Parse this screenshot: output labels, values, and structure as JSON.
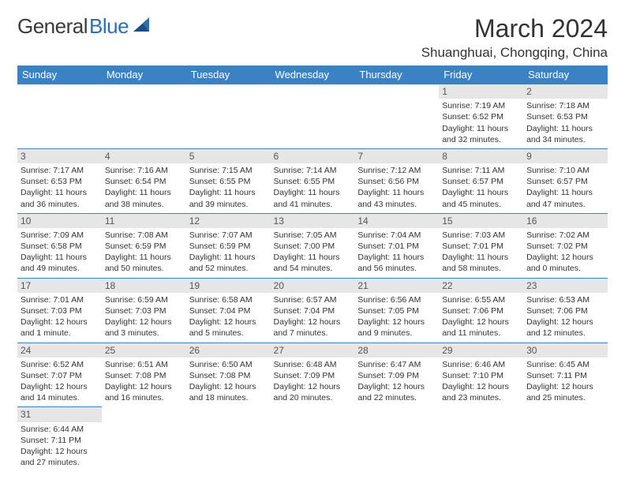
{
  "brand": {
    "part1": "General",
    "part2": "Blue"
  },
  "title": "March 2024",
  "location": "Shuanghuai, Chongqing, China",
  "colors": {
    "header_bg": "#3a82c4",
    "header_text": "#ffffff",
    "daynum_bg": "#e6e6e6",
    "border": "#3a82c4",
    "brand_blue": "#2f6db3",
    "text": "#333333"
  },
  "weekdays": [
    "Sunday",
    "Monday",
    "Tuesday",
    "Wednesday",
    "Thursday",
    "Friday",
    "Saturday"
  ],
  "weeks": [
    [
      null,
      null,
      null,
      null,
      null,
      {
        "d": "1",
        "sr": "Sunrise: 7:19 AM",
        "ss": "Sunset: 6:52 PM",
        "dl1": "Daylight: 11 hours",
        "dl2": "and 32 minutes."
      },
      {
        "d": "2",
        "sr": "Sunrise: 7:18 AM",
        "ss": "Sunset: 6:53 PM",
        "dl1": "Daylight: 11 hours",
        "dl2": "and 34 minutes."
      }
    ],
    [
      {
        "d": "3",
        "sr": "Sunrise: 7:17 AM",
        "ss": "Sunset: 6:53 PM",
        "dl1": "Daylight: 11 hours",
        "dl2": "and 36 minutes."
      },
      {
        "d": "4",
        "sr": "Sunrise: 7:16 AM",
        "ss": "Sunset: 6:54 PM",
        "dl1": "Daylight: 11 hours",
        "dl2": "and 38 minutes."
      },
      {
        "d": "5",
        "sr": "Sunrise: 7:15 AM",
        "ss": "Sunset: 6:55 PM",
        "dl1": "Daylight: 11 hours",
        "dl2": "and 39 minutes."
      },
      {
        "d": "6",
        "sr": "Sunrise: 7:14 AM",
        "ss": "Sunset: 6:55 PM",
        "dl1": "Daylight: 11 hours",
        "dl2": "and 41 minutes."
      },
      {
        "d": "7",
        "sr": "Sunrise: 7:12 AM",
        "ss": "Sunset: 6:56 PM",
        "dl1": "Daylight: 11 hours",
        "dl2": "and 43 minutes."
      },
      {
        "d": "8",
        "sr": "Sunrise: 7:11 AM",
        "ss": "Sunset: 6:57 PM",
        "dl1": "Daylight: 11 hours",
        "dl2": "and 45 minutes."
      },
      {
        "d": "9",
        "sr": "Sunrise: 7:10 AM",
        "ss": "Sunset: 6:57 PM",
        "dl1": "Daylight: 11 hours",
        "dl2": "and 47 minutes."
      }
    ],
    [
      {
        "d": "10",
        "sr": "Sunrise: 7:09 AM",
        "ss": "Sunset: 6:58 PM",
        "dl1": "Daylight: 11 hours",
        "dl2": "and 49 minutes."
      },
      {
        "d": "11",
        "sr": "Sunrise: 7:08 AM",
        "ss": "Sunset: 6:59 PM",
        "dl1": "Daylight: 11 hours",
        "dl2": "and 50 minutes."
      },
      {
        "d": "12",
        "sr": "Sunrise: 7:07 AM",
        "ss": "Sunset: 6:59 PM",
        "dl1": "Daylight: 11 hours",
        "dl2": "and 52 minutes."
      },
      {
        "d": "13",
        "sr": "Sunrise: 7:05 AM",
        "ss": "Sunset: 7:00 PM",
        "dl1": "Daylight: 11 hours",
        "dl2": "and 54 minutes."
      },
      {
        "d": "14",
        "sr": "Sunrise: 7:04 AM",
        "ss": "Sunset: 7:01 PM",
        "dl1": "Daylight: 11 hours",
        "dl2": "and 56 minutes."
      },
      {
        "d": "15",
        "sr": "Sunrise: 7:03 AM",
        "ss": "Sunset: 7:01 PM",
        "dl1": "Daylight: 11 hours",
        "dl2": "and 58 minutes."
      },
      {
        "d": "16",
        "sr": "Sunrise: 7:02 AM",
        "ss": "Sunset: 7:02 PM",
        "dl1": "Daylight: 12 hours",
        "dl2": "and 0 minutes."
      }
    ],
    [
      {
        "d": "17",
        "sr": "Sunrise: 7:01 AM",
        "ss": "Sunset: 7:03 PM",
        "dl1": "Daylight: 12 hours",
        "dl2": "and 1 minute."
      },
      {
        "d": "18",
        "sr": "Sunrise: 6:59 AM",
        "ss": "Sunset: 7:03 PM",
        "dl1": "Daylight: 12 hours",
        "dl2": "and 3 minutes."
      },
      {
        "d": "19",
        "sr": "Sunrise: 6:58 AM",
        "ss": "Sunset: 7:04 PM",
        "dl1": "Daylight: 12 hours",
        "dl2": "and 5 minutes."
      },
      {
        "d": "20",
        "sr": "Sunrise: 6:57 AM",
        "ss": "Sunset: 7:04 PM",
        "dl1": "Daylight: 12 hours",
        "dl2": "and 7 minutes."
      },
      {
        "d": "21",
        "sr": "Sunrise: 6:56 AM",
        "ss": "Sunset: 7:05 PM",
        "dl1": "Daylight: 12 hours",
        "dl2": "and 9 minutes."
      },
      {
        "d": "22",
        "sr": "Sunrise: 6:55 AM",
        "ss": "Sunset: 7:06 PM",
        "dl1": "Daylight: 12 hours",
        "dl2": "and 11 minutes."
      },
      {
        "d": "23",
        "sr": "Sunrise: 6:53 AM",
        "ss": "Sunset: 7:06 PM",
        "dl1": "Daylight: 12 hours",
        "dl2": "and 12 minutes."
      }
    ],
    [
      {
        "d": "24",
        "sr": "Sunrise: 6:52 AM",
        "ss": "Sunset: 7:07 PM",
        "dl1": "Daylight: 12 hours",
        "dl2": "and 14 minutes."
      },
      {
        "d": "25",
        "sr": "Sunrise: 6:51 AM",
        "ss": "Sunset: 7:08 PM",
        "dl1": "Daylight: 12 hours",
        "dl2": "and 16 minutes."
      },
      {
        "d": "26",
        "sr": "Sunrise: 6:50 AM",
        "ss": "Sunset: 7:08 PM",
        "dl1": "Daylight: 12 hours",
        "dl2": "and 18 minutes."
      },
      {
        "d": "27",
        "sr": "Sunrise: 6:48 AM",
        "ss": "Sunset: 7:09 PM",
        "dl1": "Daylight: 12 hours",
        "dl2": "and 20 minutes."
      },
      {
        "d": "28",
        "sr": "Sunrise: 6:47 AM",
        "ss": "Sunset: 7:09 PM",
        "dl1": "Daylight: 12 hours",
        "dl2": "and 22 minutes."
      },
      {
        "d": "29",
        "sr": "Sunrise: 6:46 AM",
        "ss": "Sunset: 7:10 PM",
        "dl1": "Daylight: 12 hours",
        "dl2": "and 23 minutes."
      },
      {
        "d": "30",
        "sr": "Sunrise: 6:45 AM",
        "ss": "Sunset: 7:11 PM",
        "dl1": "Daylight: 12 hours",
        "dl2": "and 25 minutes."
      }
    ],
    [
      {
        "d": "31",
        "sr": "Sunrise: 6:44 AM",
        "ss": "Sunset: 7:11 PM",
        "dl1": "Daylight: 12 hours",
        "dl2": "and 27 minutes."
      },
      null,
      null,
      null,
      null,
      null,
      null
    ]
  ]
}
